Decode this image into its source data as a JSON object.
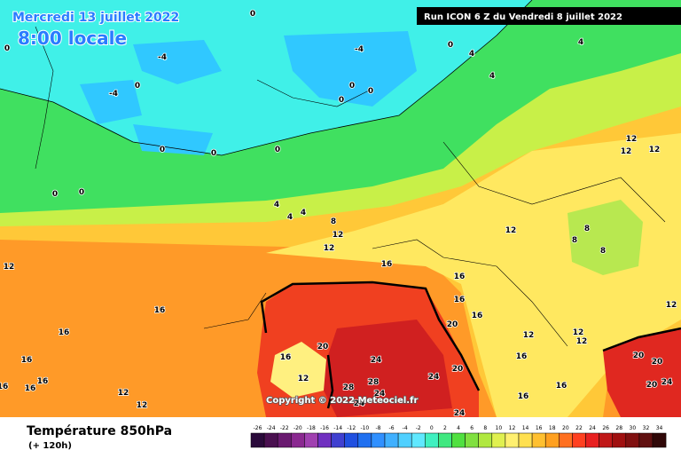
{
  "header": {
    "date": "Mercredi 13 juillet 2022",
    "time": "8:00 locale",
    "run": "Run ICON 6 Z du Vendredi 8 juillet 2022"
  },
  "footer": {
    "title": "Température 850hPa",
    "lead": "(+ 120h)",
    "copyright": "Copyright © 2022 Meteociel.fr"
  },
  "scale": {
    "ticks": [
      -26,
      -24,
      -22,
      -20,
      -18,
      -16,
      -14,
      -12,
      -10,
      -8,
      -6,
      -4,
      -2,
      0,
      2,
      4,
      6,
      8,
      10,
      12,
      14,
      16,
      18,
      20,
      22,
      24,
      26,
      28,
      30,
      32,
      34
    ],
    "colors": [
      "#2a0a3a",
      "#4a1050",
      "#6a1a70",
      "#8a2890",
      "#a040b0",
      "#7030c0",
      "#4040d0",
      "#2050e0",
      "#2070f0",
      "#3090ff",
      "#40b0ff",
      "#50d0ff",
      "#60e8ff",
      "#40f0c0",
      "#40e880",
      "#50e040",
      "#80e040",
      "#b0e840",
      "#e0f050",
      "#fff070",
      "#ffe050",
      "#ffc030",
      "#ffa020",
      "#ff7020",
      "#ff4020",
      "#e82020",
      "#c01818",
      "#a01010",
      "#801010",
      "#601010",
      "#300808"
    ]
  },
  "map": {
    "labels": [
      0,
      0,
      -4,
      -4,
      0,
      4,
      4,
      4,
      0,
      -4,
      0,
      0,
      0,
      0,
      0,
      0,
      0,
      0,
      4,
      4,
      4,
      8,
      12,
      12,
      12,
      12,
      12,
      12,
      8,
      8,
      8,
      12,
      16,
      16,
      16,
      16,
      16,
      16,
      20,
      12,
      12,
      12,
      16,
      20,
      16,
      12,
      16,
      16,
      16,
      16,
      12,
      12,
      24,
      20,
      24,
      28,
      28,
      24,
      24,
      16,
      16,
      20,
      20,
      24,
      20,
      12,
      24
    ]
  }
}
